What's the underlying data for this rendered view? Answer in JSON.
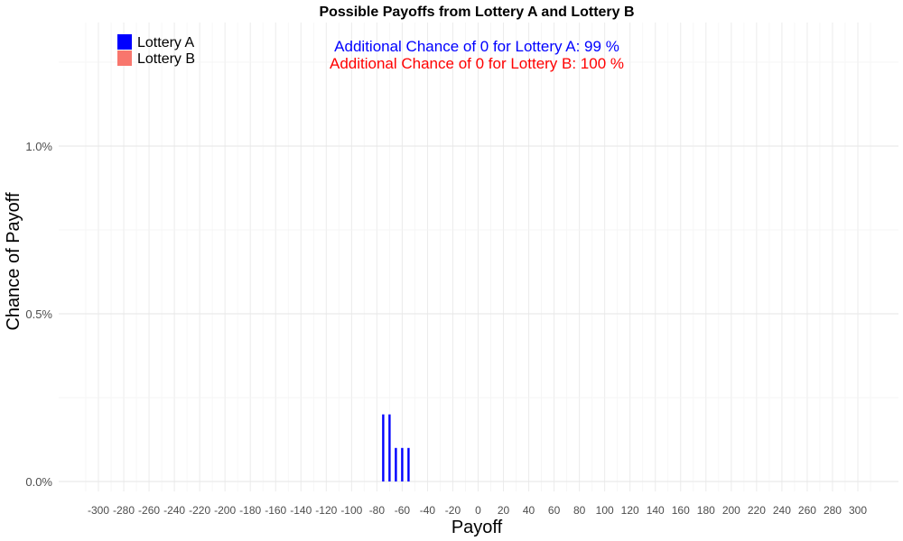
{
  "chart_data": {
    "type": "bar",
    "title": "Possible Payoffs from Lottery A and Lottery B",
    "xlabel": "Payoff",
    "ylabel": "Chance of Payoff",
    "xlim": [
      -320,
      320
    ],
    "ylim": [
      0,
      1.0
    ],
    "x_ticks": [
      -300,
      -280,
      -260,
      -240,
      -220,
      -200,
      -180,
      -160,
      -140,
      -120,
      -100,
      -80,
      -60,
      -40,
      -20,
      0,
      20,
      40,
      60,
      80,
      100,
      120,
      140,
      160,
      180,
      200,
      220,
      240,
      260,
      280,
      300
    ],
    "y_ticks": [
      {
        "value": 0.0,
        "label": "0.0%"
      },
      {
        "value": 0.5,
        "label": "0.5%"
      },
      {
        "value": 1.0,
        "label": "1.0%"
      }
    ],
    "grid": true,
    "legend_position": "top-left",
    "series": [
      {
        "name": "Lottery A",
        "color": "#0000ff",
        "x": [
          -75,
          -70,
          -65,
          -60,
          -55
        ],
        "values": [
          0.2,
          0.2,
          0.1,
          0.1,
          0.1
        ]
      },
      {
        "name": "Lottery B",
        "color": "#f8766d",
        "x": [],
        "values": []
      }
    ],
    "annotations": [
      {
        "text": "Additional Chance of 0 for Lottery A:  99 %",
        "color": "#0000ff"
      },
      {
        "text": "Additional Chance of 0 for Lottery B:  100 %",
        "color": "#ff0000"
      }
    ]
  }
}
